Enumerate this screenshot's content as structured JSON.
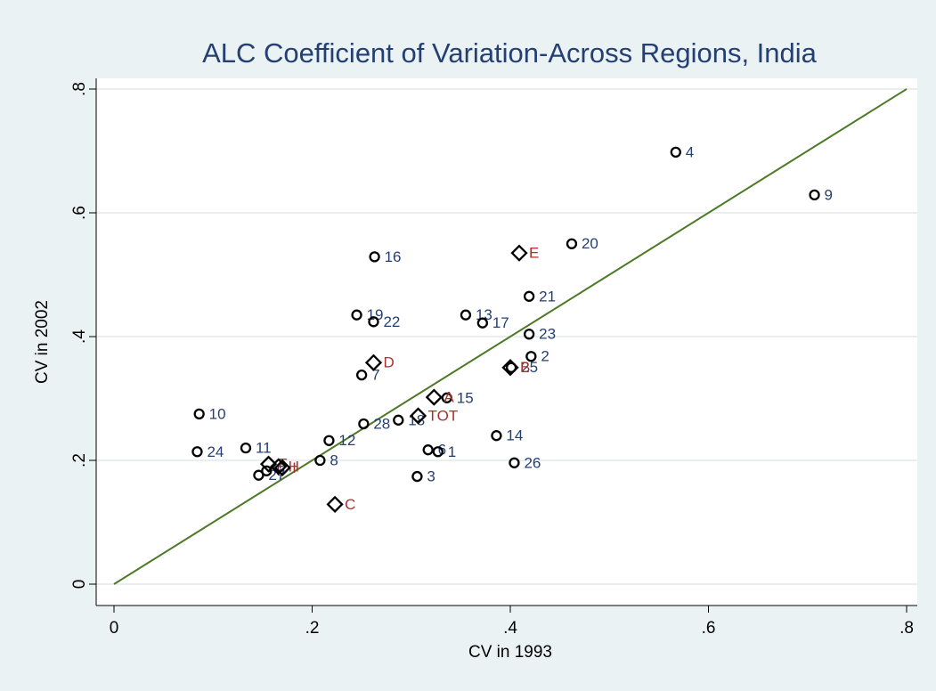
{
  "chart_data": {
    "type": "scatter",
    "title": "ALC Coefficient of Variation-Across Regions, India",
    "x_label": "CV in 1993",
    "y_label": "CV in 2002",
    "xlim": [
      0,
      0.8
    ],
    "ylim": [
      0,
      0.8
    ],
    "xticks": [
      0,
      {
        "value": 0.2,
        "label": ".2"
      },
      {
        "value": 0.4,
        "label": ".4"
      },
      {
        "value": 0.6,
        "label": ".6"
      },
      {
        "value": 0.8,
        "label": ".8"
      }
    ],
    "yticks": [
      0,
      {
        "value": 0.2,
        "label": ".2"
      },
      {
        "value": 0.4,
        "label": ".4"
      },
      {
        "value": 0.6,
        "label": ".6"
      },
      {
        "value": 0.8,
        "label": ".8"
      }
    ],
    "grid": true,
    "reference_line": {
      "color": "#4d7a27",
      "x": [
        0,
        0.8
      ],
      "y": [
        0,
        0.8
      ]
    },
    "series": [
      {
        "marker": "circle",
        "color": "#000000",
        "label_color": "#243f73",
        "labels": [
          "4",
          "9",
          "20",
          "16",
          "21",
          "19",
          "22",
          "13",
          "17",
          "23",
          "2",
          "7",
          "15",
          "10",
          "18",
          "28",
          "14",
          "12",
          "24",
          "11",
          "6",
          "1",
          "8",
          "26",
          "3",
          "27",
          "5",
          "25"
        ],
        "x": [
          0.567,
          0.707,
          0.462,
          0.263,
          0.419,
          0.245,
          0.262,
          0.355,
          0.372,
          0.419,
          0.421,
          0.25,
          0.336,
          0.086,
          0.287,
          0.252,
          0.386,
          0.217,
          0.084,
          0.133,
          0.317,
          0.327,
          0.208,
          0.404,
          0.306,
          0.146,
          0.154,
          0.401
        ],
        "y": [
          0.698,
          0.629,
          0.55,
          0.529,
          0.465,
          0.435,
          0.424,
          0.435,
          0.422,
          0.404,
          0.368,
          0.338,
          0.301,
          0.275,
          0.265,
          0.259,
          0.24,
          0.232,
          0.214,
          0.22,
          0.217,
          0.214,
          0.2,
          0.196,
          0.174,
          0.176,
          0.183,
          0.35
        ]
      },
      {
        "marker": "diamond",
        "color": "#000000",
        "label_color": "#a8322d",
        "labels": [
          "E",
          "D",
          "B",
          "A",
          "TOT",
          "C",
          "F",
          "H",
          "I"
        ],
        "x": [
          0.409,
          0.262,
          0.4,
          0.323,
          0.307,
          0.223,
          0.156,
          0.166,
          0.17
        ],
        "y": [
          0.535,
          0.358,
          0.35,
          0.302,
          0.272,
          0.129,
          0.194,
          0.19,
          0.188
        ]
      }
    ]
  }
}
